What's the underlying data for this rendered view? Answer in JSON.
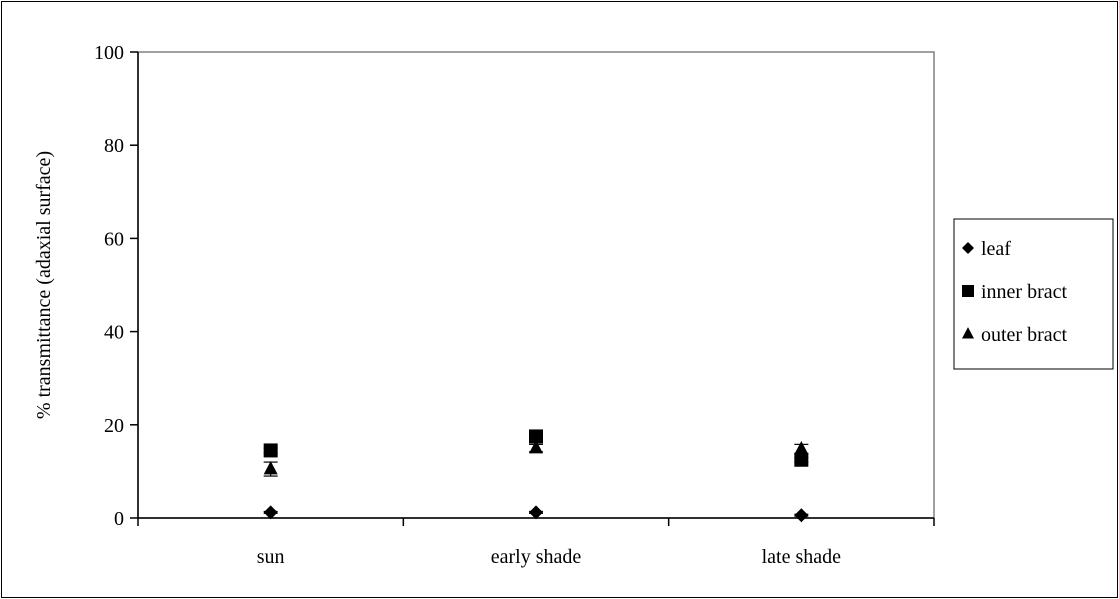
{
  "chart_data": {
    "type": "scatter",
    "title": "",
    "xlabel": "",
    "ylabel": "% transmittance (adaxial surface)",
    "categories": [
      "sun",
      "early shade",
      "late shade"
    ],
    "ylim": [
      0,
      100
    ],
    "yticks": [
      0,
      20,
      40,
      60,
      80,
      100
    ],
    "grid": false,
    "legend_position": "right",
    "series": [
      {
        "name": "leaf",
        "marker": "diamond",
        "values": [
          1.2,
          1.2,
          0.6
        ],
        "error": [
          0.2,
          0.2,
          0.2
        ]
      },
      {
        "name": "inner bract",
        "marker": "square",
        "values": [
          14.5,
          17.5,
          12.5
        ],
        "error": [
          0.5,
          0.5,
          0.5
        ]
      },
      {
        "name": "outer bract",
        "marker": "triangle",
        "values": [
          10.5,
          15.0,
          14.8
        ],
        "error": [
          1.5,
          0.8,
          1.0
        ]
      }
    ],
    "colors": {
      "marker": "#000000",
      "axis": "#000000",
      "frame": "#000000",
      "plot_border": "#808080"
    }
  }
}
